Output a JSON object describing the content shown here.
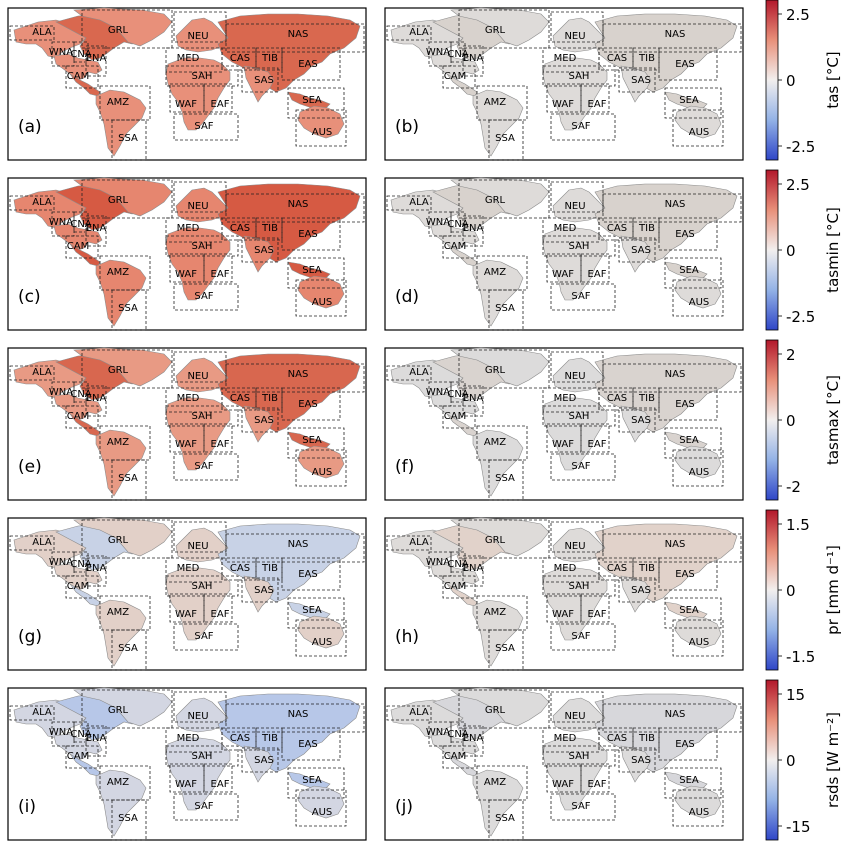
{
  "panels": [
    {
      "letter": "(a)",
      "fill": "#e8907a",
      "fill2": "#d9684f"
    },
    {
      "letter": "(b)",
      "fill": "#dedbd9",
      "fill2": "#d8d2cd"
    },
    {
      "letter": "(c)",
      "fill": "#e6866f",
      "fill2": "#d65a43"
    },
    {
      "letter": "(d)",
      "fill": "#dedbd9",
      "fill2": "#d8d2cd"
    },
    {
      "letter": "(e)",
      "fill": "#e89a84",
      "fill2": "#d8674f"
    },
    {
      "letter": "(f)",
      "fill": "#dcdbdb",
      "fill2": "#d9d3cf"
    },
    {
      "letter": "(g)",
      "fill": "#e2d0c8",
      "fill2": "#c8d2e6"
    },
    {
      "letter": "(h)",
      "fill": "#dedbd9",
      "fill2": "#e1d2ca"
    },
    {
      "letter": "(i)",
      "fill": "#d3d6e2",
      "fill2": "#b7c7e8"
    },
    {
      "letter": "(j)",
      "fill": "#dcdbdb",
      "fill2": "#d7d7db"
    }
  ],
  "colorbars": [
    {
      "label": "tas [°C]",
      "ticks": [
        "2.5",
        "0",
        "-2.5"
      ]
    },
    {
      "label": "tasmin [°C]",
      "ticks": [
        "2.5",
        "0",
        "-2.5"
      ]
    },
    {
      "label": "tasmax [°C]",
      "ticks": [
        "2",
        "0",
        "-2"
      ]
    },
    {
      "label": "pr [mm d⁻¹]",
      "ticks": [
        "1.5",
        "0",
        "-1.5"
      ]
    },
    {
      "label": "rsds [W m⁻²]",
      "ticks": [
        "15",
        "0",
        "-15"
      ]
    }
  ],
  "regions": [
    {
      "name": "ALA"
    },
    {
      "name": "GRL"
    },
    {
      "name": "NEU"
    },
    {
      "name": "NAS"
    },
    {
      "name": "WNA"
    },
    {
      "name": "CNA"
    },
    {
      "name": "ENA"
    },
    {
      "name": "MED"
    },
    {
      "name": "CAS"
    },
    {
      "name": "TIB"
    },
    {
      "name": "EAS"
    },
    {
      "name": "CAM"
    },
    {
      "name": "SAH"
    },
    {
      "name": "SAS"
    },
    {
      "name": "AMZ"
    },
    {
      "name": "WAF"
    },
    {
      "name": "EAF"
    },
    {
      "name": "SEA"
    },
    {
      "name": "SAF"
    },
    {
      "name": "AUS"
    },
    {
      "name": "SSA"
    }
  ],
  "colors": {
    "warm": "#b2182b",
    "neutral": "#f7f7f7",
    "cold": "#2b3fc9",
    "frame": "#000000",
    "box": "#222222"
  }
}
